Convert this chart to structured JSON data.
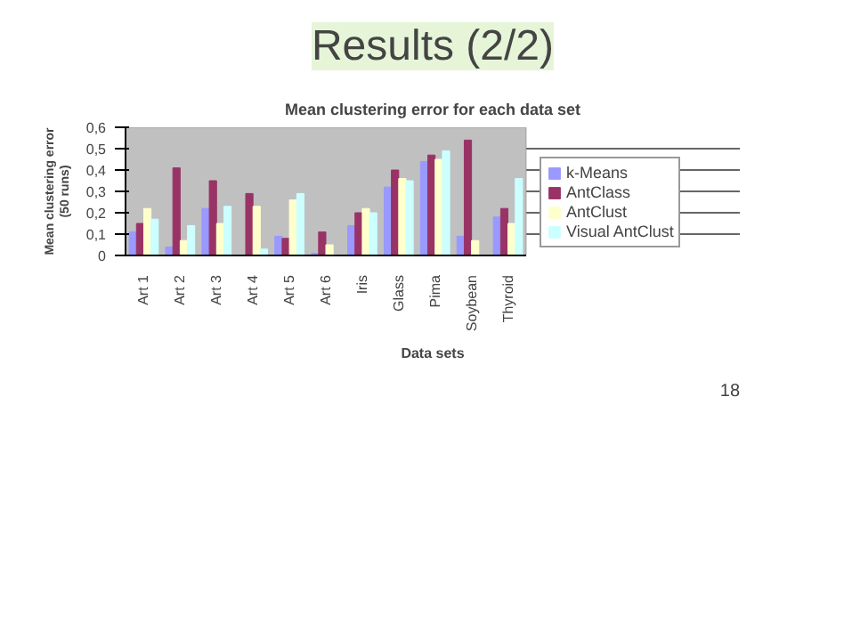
{
  "chart_data": {
    "type": "bar",
    "title": "Mean clustering error for each data set",
    "xlabel": "Data sets",
    "ylabel": "Mean clustering error (50 runs)",
    "annotations": [
      "Results (2/2)",
      "18"
    ],
    "categories": [
      "Art 1",
      "Art 2",
      "Art 3",
      "Art 4",
      "Art 5",
      "Art 6",
      "Iris",
      "Glass",
      "Pima",
      "Soybean",
      "Thyroid"
    ],
    "series": [
      {
        "name": "k-Means",
        "color": "#9999ff",
        "values": [
          0.11,
          0.04,
          0.22,
          0,
          0.09,
          0.01,
          0.14,
          0.32,
          0.44,
          0.09,
          0.18
        ]
      },
      {
        "name": "AntClass",
        "color": "#993366",
        "values": [
          0.15,
          0.41,
          0.35,
          0.29,
          0.08,
          0.11,
          0.2,
          0.4,
          0.47,
          0.54,
          0.22
        ]
      },
      {
        "name": "AntClust",
        "color": "#ffffcc",
        "values": [
          0.22,
          0.07,
          0.15,
          0.23,
          0.26,
          0.05,
          0.22,
          0.36,
          0.45,
          0.07,
          0.15
        ]
      },
      {
        "name": "Visual AntClust",
        "color": "#ccffff",
        "values": [
          0.17,
          0.14,
          0.23,
          0.03,
          0.29,
          0,
          0.2,
          0.35,
          0.49,
          0,
          0.36
        ]
      }
    ],
    "ylim": [
      0,
      0.6
    ],
    "yticks": [
      {
        "value": 0,
        "label": "0"
      },
      {
        "value": 0.1,
        "label": "0,1"
      },
      {
        "value": 0.2,
        "label": "0,2"
      },
      {
        "value": 0.3,
        "label": "0,3"
      },
      {
        "value": 0.4,
        "label": "0,4"
      },
      {
        "value": 0.5,
        "label": "0,5"
      },
      {
        "value": 0.6,
        "label": "0,6"
      }
    ],
    "grid": "y",
    "legend": "right"
  }
}
